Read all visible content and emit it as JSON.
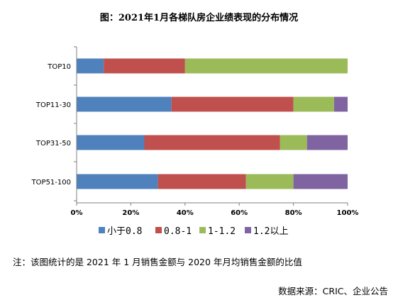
{
  "title": "图：2021年1月各梯队房企业绩表现的分布情况",
  "note": "注：该图统计的是 2021 年 1 月销售金额与 2020 年月均销售金额的比值",
  "source": "数据来源：CRIC、企业公告",
  "colors": [
    "#4f81bd",
    "#c0504d",
    "#9bbb59",
    "#8064a2"
  ],
  "chart_data": {
    "type": "bar",
    "orientation": "horizontal",
    "stacked": "percent",
    "categories": [
      "TOP10",
      "TOP11-30",
      "TOP31-50",
      "TOP51-100"
    ],
    "series": [
      {
        "name": "小于0.8",
        "values": [
          10,
          35,
          25,
          30
        ]
      },
      {
        "name": "0.8-1",
        "values": [
          30,
          45,
          50,
          32.5
        ]
      },
      {
        "name": "1-1.2",
        "values": [
          60,
          15,
          10,
          17.5
        ]
      },
      {
        "name": "1.2以上",
        "values": [
          0,
          5,
          15,
          20
        ]
      }
    ],
    "xlim": [
      0,
      100
    ],
    "xticks": [
      "0%",
      "20%",
      "40%",
      "60%",
      "80%",
      "100%"
    ],
    "grid": false,
    "legend": "bottom"
  }
}
